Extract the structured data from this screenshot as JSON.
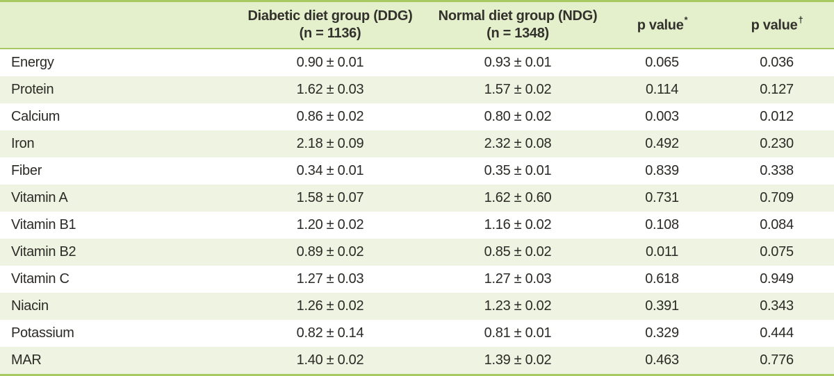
{
  "colors": {
    "border_green": "#a7c961",
    "header_bg": "#e4efcc",
    "alt_row_bg": "#eef3e2",
    "text": "#2c2a26"
  },
  "table": {
    "header": {
      "nutrient": "",
      "ddg_line1": "Diabetic diet group (DDG)",
      "ddg_line2": "(n = 1136)",
      "ndg_line1": "Normal diet group (NDG)",
      "ndg_line2": "(n = 1348)",
      "p1_label": "p value",
      "p1_mark": "*",
      "p2_label": "p value",
      "p2_mark": "†"
    },
    "rows": [
      {
        "name": "Energy",
        "ddg": "0.90 ± 0.01",
        "ndg": "0.93 ± 0.01",
        "p1": "0.065",
        "p2": "0.036"
      },
      {
        "name": "Protein",
        "ddg": "1.62 ± 0.03",
        "ndg": "1.57 ± 0.02",
        "p1": "0.114",
        "p2": "0.127"
      },
      {
        "name": "Calcium",
        "ddg": "0.86 ± 0.02",
        "ndg": "0.80 ± 0.02",
        "p1": "0.003",
        "p2": "0.012"
      },
      {
        "name": "Iron",
        "ddg": "2.18 ± 0.09",
        "ndg": "2.32 ± 0.08",
        "p1": "0.492",
        "p2": "0.230"
      },
      {
        "name": "Fiber",
        "ddg": "0.34 ± 0.01",
        "ndg": "0.35 ± 0.01",
        "p1": "0.839",
        "p2": "0.338"
      },
      {
        "name": "Vitamin A",
        "ddg": "1.58 ± 0.07",
        "ndg": "1.62 ± 0.60",
        "p1": "0.731",
        "p2": "0.709"
      },
      {
        "name": "Vitamin B1",
        "ddg": "1.20 ± 0.02",
        "ndg": "1.16 ± 0.02",
        "p1": "0.108",
        "p2": "0.084"
      },
      {
        "name": "Vitamin B2",
        "ddg": "0.89 ± 0.02",
        "ndg": "0.85 ± 0.02",
        "p1": "0.011",
        "p2": "0.075"
      },
      {
        "name": "Vitamin C",
        "ddg": "1.27 ± 0.03",
        "ndg": "1.27 ± 0.03",
        "p1": "0.618",
        "p2": "0.949"
      },
      {
        "name": "Niacin",
        "ddg": "1.26 ± 0.02",
        "ndg": "1.23 ± 0.02",
        "p1": "0.391",
        "p2": "0.343"
      },
      {
        "name": "Potassium",
        "ddg": "0.82 ± 0.14",
        "ndg": "0.81 ± 0.01",
        "p1": "0.329",
        "p2": "0.444"
      },
      {
        "name": "MAR",
        "ddg": "1.40 ± 0.02",
        "ndg": "1.39 ± 0.02",
        "p1": "0.463",
        "p2": "0.776"
      }
    ]
  }
}
